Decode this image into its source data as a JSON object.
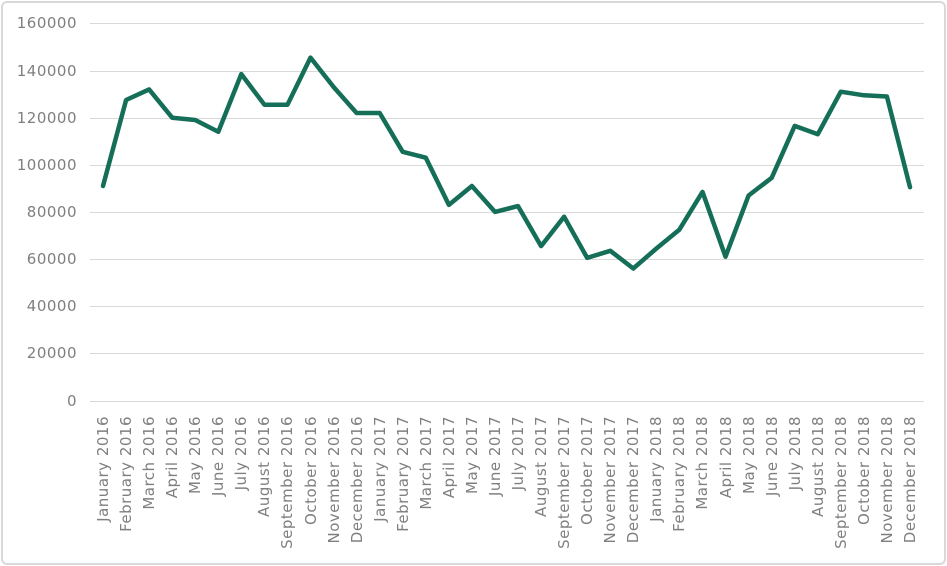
{
  "chart": {
    "background_color": "#FFFFFF",
    "border_color": "#D9D9D9",
    "title": ""
  },
  "chart_data": {
    "type": "line",
    "title": "",
    "xlabel": "",
    "ylabel": "",
    "legend": "none",
    "grid": "horizontal",
    "x_label_rotation_deg": -90,
    "line_color": "#156E58",
    "gridline_color": "#D9D9D9",
    "tick_label_color": "#7F7F7F",
    "ylim": [
      0,
      160000
    ],
    "yticks": [
      0,
      20000,
      40000,
      60000,
      80000,
      100000,
      120000,
      140000,
      160000
    ],
    "categories": [
      "January 2016",
      "February 2016",
      "March 2016",
      "April 2016",
      "May 2016",
      "June 2016",
      "July 2016",
      "August 2016",
      "September 2016",
      "October 2016",
      "November 2016",
      "December 2016",
      "January 2017",
      "February 2017",
      "March 2017",
      "April 2017",
      "May 2017",
      "June 2017",
      "July 2017",
      "August 2017",
      "September 2017",
      "October 2017",
      "November 2017",
      "December 2017",
      "January 2018",
      "February 2018",
      "March 2018",
      "April 2018",
      "May 2018",
      "June 2018",
      "July 2018",
      "August 2018",
      "September 2018",
      "October 2018",
      "November 2018",
      "December 2018"
    ],
    "series": [
      {
        "name": "",
        "values": [
          91000,
          127500,
          132000,
          120000,
          119000,
          114000,
          138500,
          125500,
          125500,
          145500,
          133000,
          122000,
          122000,
          105500,
          103000,
          83000,
          91000,
          80000,
          82500,
          65500,
          78000,
          60500,
          63500,
          56000,
          64500,
          72500,
          88500,
          61000,
          87000,
          94500,
          116500,
          113000,
          131000,
          129500,
          129000,
          90500
        ]
      }
    ]
  }
}
